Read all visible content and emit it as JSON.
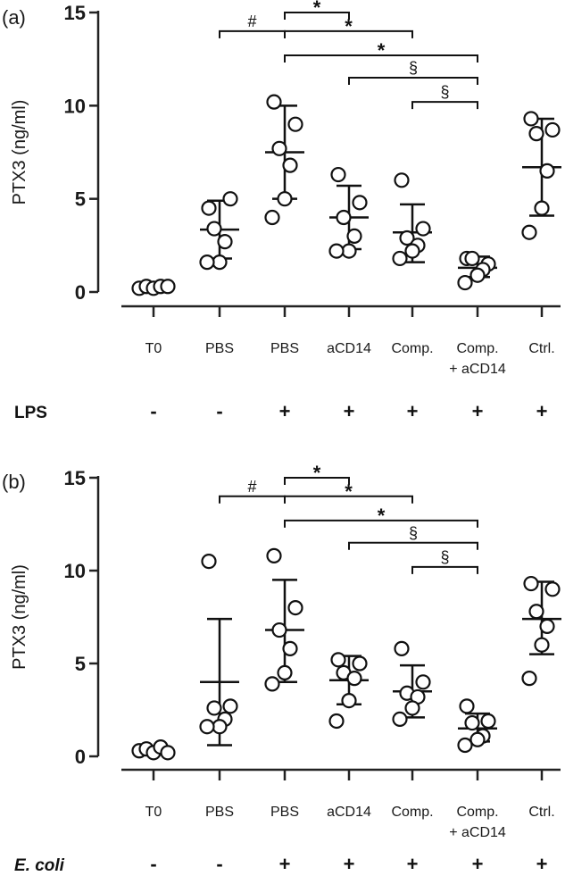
{
  "figure_panels": [
    {
      "panel_label": "(a)",
      "treatment_label": "LPS",
      "treatment_italic": false,
      "treatment_signs": [
        "-",
        "-",
        "+",
        "+",
        "+",
        "+",
        "+"
      ]
    },
    {
      "panel_label": "(b)",
      "treatment_label": "E. coli",
      "treatment_italic": true,
      "treatment_signs": [
        "-",
        "-",
        "+",
        "+",
        "+",
        "+",
        "+"
      ]
    }
  ],
  "chart_data": [
    {
      "type": "scatter",
      "title": "(a)",
      "ylabel": "PTX3 (ng/ml)",
      "xlabel": "",
      "ylim": [
        0,
        15
      ],
      "yticks": [
        "0",
        "5",
        "10",
        "15"
      ],
      "categories": [
        {
          "label": "T0"
        },
        {
          "label": "PBS"
        },
        {
          "label": "PBS"
        },
        {
          "label": "aCD14"
        },
        {
          "label": "Comp."
        },
        {
          "label": "Comp.",
          "label2": "+ aCD14"
        },
        {
          "label": "Ctrl."
        }
      ],
      "series": [
        {
          "name": "T0",
          "points": [
            0.2,
            0.3,
            0.2,
            0.3,
            0.3
          ],
          "mean": 0.25,
          "sd_low": 0.2,
          "sd_high": 0.3
        },
        {
          "name": "PBS",
          "points": [
            4.5,
            5.0,
            3.4,
            2.7,
            1.6,
            1.6
          ],
          "mean": 3.35,
          "sd_low": 1.8,
          "sd_high": 4.9
        },
        {
          "name": "PBS + LPS",
          "points": [
            10.2,
            9.0,
            7.7,
            6.8,
            5.0,
            4.0
          ],
          "mean": 7.5,
          "sd_low": 5.0,
          "sd_high": 10.0
        },
        {
          "name": "aCD14",
          "points": [
            6.3,
            4.8,
            4.0,
            3.0,
            2.2,
            2.2
          ],
          "mean": 4.0,
          "sd_low": 2.3,
          "sd_high": 5.7
        },
        {
          "name": "Comp.",
          "points": [
            6.0,
            3.4,
            2.9,
            2.5,
            2.2,
            1.8
          ],
          "mean": 3.2,
          "sd_low": 1.6,
          "sd_high": 4.7
        },
        {
          "name": "Comp. + aCD14",
          "points": [
            1.8,
            1.5,
            1.8,
            1.2,
            0.9,
            0.5
          ],
          "mean": 1.3,
          "sd_low": 0.8,
          "sd_high": 1.9
        },
        {
          "name": "Ctrl.",
          "points": [
            9.3,
            8.7,
            8.5,
            6.5,
            4.5,
            3.2
          ],
          "mean": 6.7,
          "sd_low": 4.1,
          "sd_high": 9.3
        }
      ],
      "significance": [
        {
          "from": 1,
          "to": 2,
          "symbol": "#",
          "level": 14.0
        },
        {
          "from": 2,
          "to": 3,
          "symbol": "*",
          "level": 15.0
        },
        {
          "from": 2,
          "to": 4,
          "symbol": "*",
          "level": 14.0
        },
        {
          "from": 2,
          "to": 5,
          "symbol": "*",
          "level": 12.7
        },
        {
          "from": 3,
          "to": 5,
          "symbol": "§",
          "level": 11.5
        },
        {
          "from": 4,
          "to": 5,
          "symbol": "§",
          "level": 10.2
        }
      ]
    },
    {
      "type": "scatter",
      "title": "(b)",
      "ylabel": "PTX3 (ng/ml)",
      "xlabel": "",
      "ylim": [
        0,
        15
      ],
      "yticks": [
        "0",
        "5",
        "10",
        "15"
      ],
      "categories": [
        {
          "label": "T0"
        },
        {
          "label": "PBS"
        },
        {
          "label": "PBS"
        },
        {
          "label": "aCD14"
        },
        {
          "label": "Comp."
        },
        {
          "label": "Comp.",
          "label2": "+ aCD14"
        },
        {
          "label": "Ctrl."
        }
      ],
      "series": [
        {
          "name": "T0",
          "points": [
            0.3,
            0.4,
            0.2,
            0.5,
            0.2
          ],
          "mean": 0.3,
          "sd_low": 0.2,
          "sd_high": 0.4
        },
        {
          "name": "PBS",
          "points": [
            10.5,
            2.7,
            2.6,
            2.0,
            1.6,
            1.6
          ],
          "mean": 4.0,
          "sd_low": 0.6,
          "sd_high": 7.4
        },
        {
          "name": "PBS + E. coli",
          "points": [
            10.8,
            8.0,
            6.8,
            5.8,
            4.5,
            3.9
          ],
          "mean": 6.8,
          "sd_low": 4.0,
          "sd_high": 9.5
        },
        {
          "name": "aCD14",
          "points": [
            5.2,
            5.0,
            4.5,
            4.2,
            3.0,
            1.9
          ],
          "mean": 4.1,
          "sd_low": 2.8,
          "sd_high": 5.4
        },
        {
          "name": "Comp.",
          "points": [
            5.8,
            4.0,
            3.4,
            3.2,
            2.6,
            2.0
          ],
          "mean": 3.5,
          "sd_low": 2.1,
          "sd_high": 4.9
        },
        {
          "name": "Comp. + aCD14",
          "points": [
            2.7,
            1.9,
            1.8,
            1.1,
            0.9,
            0.6
          ],
          "mean": 1.5,
          "sd_low": 0.8,
          "sd_high": 2.3
        },
        {
          "name": "Ctrl.",
          "points": [
            9.3,
            9.0,
            7.8,
            7.0,
            6.0,
            4.2
          ],
          "mean": 7.4,
          "sd_low": 5.5,
          "sd_high": 9.4
        }
      ],
      "significance": [
        {
          "from": 1,
          "to": 2,
          "symbol": "#",
          "level": 14.0
        },
        {
          "from": 2,
          "to": 3,
          "symbol": "*",
          "level": 15.0
        },
        {
          "from": 2,
          "to": 4,
          "symbol": "*",
          "level": 14.0
        },
        {
          "from": 2,
          "to": 5,
          "symbol": "*",
          "level": 12.7
        },
        {
          "from": 3,
          "to": 5,
          "symbol": "§",
          "level": 11.5
        },
        {
          "from": 4,
          "to": 5,
          "symbol": "§",
          "level": 10.2
        }
      ]
    }
  ]
}
